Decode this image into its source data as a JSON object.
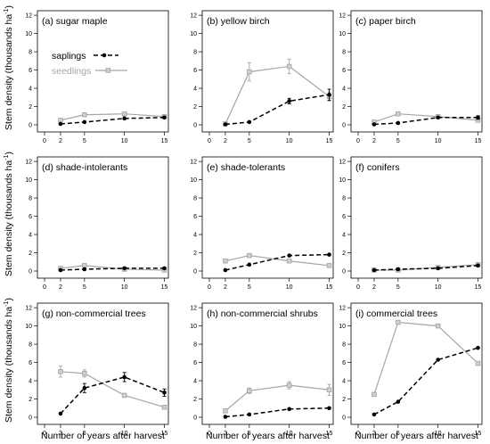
{
  "figure": {
    "ylabel": "Stem density (thousands ha",
    "ylabel_sup": "-1",
    "xlabel": "Number of years after harvest"
  },
  "legend": {
    "saplings": "saplings",
    "seedlings": "seedlings"
  },
  "colors": {
    "saplings": "#000000",
    "seedlings": "#a6a6a6"
  },
  "chart_data": [
    {
      "type": "line",
      "title": "(a) sugar maple",
      "x": [
        2,
        5,
        10,
        15
      ],
      "xticks": [
        0,
        2,
        5,
        10,
        15
      ],
      "xlim": [
        0,
        15.5
      ],
      "yticks": [
        0,
        2,
        4,
        6,
        8,
        10,
        12
      ],
      "ylim": [
        0,
        12.5
      ],
      "series": [
        {
          "name": "saplings",
          "values": [
            0.1,
            0.3,
            0.7,
            0.8
          ],
          "err": [
            0,
            0,
            0,
            0.1
          ]
        },
        {
          "name": "seedlings",
          "values": [
            0.5,
            1.1,
            1.2,
            0.9
          ],
          "err": [
            0,
            0,
            0.1,
            0
          ]
        }
      ]
    },
    {
      "type": "line",
      "title": "(b) yellow birch",
      "x": [
        2,
        5,
        10,
        15
      ],
      "xticks": [
        0,
        2,
        5,
        10,
        15
      ],
      "xlim": [
        0,
        15.5
      ],
      "yticks": [
        0,
        2,
        4,
        6,
        8,
        10,
        12
      ],
      "ylim": [
        0,
        12.5
      ],
      "series": [
        {
          "name": "saplings",
          "values": [
            0.05,
            0.3,
            2.6,
            3.3
          ],
          "err": [
            0,
            0,
            0.3,
            0.6
          ]
        },
        {
          "name": "seedlings",
          "values": [
            0.1,
            5.8,
            6.4,
            3.1
          ],
          "err": [
            0.2,
            1.0,
            0.8,
            0.5
          ]
        }
      ]
    },
    {
      "type": "line",
      "title": "(c) paper birch",
      "x": [
        2,
        5,
        10,
        15
      ],
      "xticks": [
        0,
        2,
        5,
        10,
        15
      ],
      "xlim": [
        0,
        15.5
      ],
      "yticks": [
        0,
        2,
        4,
        6,
        8,
        10,
        12
      ],
      "ylim": [
        0,
        12.5
      ],
      "series": [
        {
          "name": "saplings",
          "values": [
            0.05,
            0.2,
            0.8,
            0.8
          ],
          "err": [
            0,
            0,
            0,
            0.2
          ]
        },
        {
          "name": "seedlings",
          "values": [
            0.3,
            1.2,
            0.9,
            0.5
          ],
          "err": [
            0,
            0,
            0.1,
            0
          ]
        }
      ]
    },
    {
      "type": "line",
      "title": "(d) shade-intolerants",
      "x": [
        2,
        5,
        10,
        15
      ],
      "xticks": [
        0,
        2,
        5,
        10,
        15
      ],
      "xlim": [
        0,
        15.5
      ],
      "yticks": [
        0,
        2,
        4,
        6,
        8,
        10,
        12
      ],
      "ylim": [
        0,
        12.5
      ],
      "series": [
        {
          "name": "saplings",
          "values": [
            0.1,
            0.2,
            0.3,
            0.3
          ],
          "err": [
            0,
            0,
            0,
            0
          ]
        },
        {
          "name": "seedlings",
          "values": [
            0.3,
            0.6,
            0.2,
            0.1
          ],
          "err": [
            0.1,
            0.2,
            0,
            0
          ]
        }
      ]
    },
    {
      "type": "line",
      "title": "(e) shade-tolerants",
      "x": [
        2,
        5,
        10,
        15
      ],
      "xticks": [
        0,
        2,
        5,
        10,
        15
      ],
      "xlim": [
        0,
        15.5
      ],
      "yticks": [
        0,
        2,
        4,
        6,
        8,
        10,
        12
      ],
      "ylim": [
        0,
        12.5
      ],
      "series": [
        {
          "name": "saplings",
          "values": [
            0.1,
            0.7,
            1.7,
            1.8
          ],
          "err": [
            0,
            0,
            0,
            0
          ]
        },
        {
          "name": "seedlings",
          "values": [
            1.1,
            1.7,
            1.1,
            0.6
          ],
          "err": [
            0,
            0,
            0,
            0
          ]
        }
      ]
    },
    {
      "type": "line",
      "title": "(f) conifers",
      "x": [
        2,
        5,
        10,
        15
      ],
      "xticks": [
        0,
        2,
        5,
        10,
        15
      ],
      "xlim": [
        0,
        15.5
      ],
      "yticks": [
        0,
        2,
        4,
        6,
        8,
        10,
        12
      ],
      "ylim": [
        0,
        12.5
      ],
      "series": [
        {
          "name": "saplings",
          "values": [
            0.1,
            0.2,
            0.3,
            0.6
          ],
          "err": [
            0,
            0,
            0,
            0
          ]
        },
        {
          "name": "seedlings",
          "values": [
            0.1,
            0.1,
            0.4,
            0.7
          ],
          "err": [
            0,
            0,
            0,
            0
          ]
        }
      ]
    },
    {
      "type": "line",
      "title": "(g) non-commercial trees",
      "x": [
        2,
        5,
        10,
        15
      ],
      "xticks": [
        0,
        2,
        5,
        10,
        15
      ],
      "xlim": [
        0,
        15.5
      ],
      "yticks": [
        0,
        2,
        4,
        6,
        8,
        10,
        12
      ],
      "ylim": [
        0,
        12.5
      ],
      "series": [
        {
          "name": "saplings",
          "values": [
            0.4,
            3.2,
            4.4,
            2.7
          ],
          "err": [
            0,
            0.5,
            0.5,
            0.4
          ]
        },
        {
          "name": "seedlings",
          "values": [
            5.0,
            4.8,
            2.4,
            1.1
          ],
          "err": [
            0.6,
            0.4,
            0,
            0
          ]
        }
      ]
    },
    {
      "type": "line",
      "title": "(h) non-commercial shrubs",
      "x": [
        2,
        5,
        10,
        15
      ],
      "xticks": [
        0,
        2,
        5,
        10,
        15
      ],
      "xlim": [
        0,
        15.5
      ],
      "yticks": [
        0,
        2,
        4,
        6,
        8,
        10,
        12
      ],
      "ylim": [
        0,
        12.5
      ],
      "series": [
        {
          "name": "saplings",
          "values": [
            0.05,
            0.3,
            0.9,
            1.0
          ],
          "err": [
            0,
            0,
            0,
            0
          ]
        },
        {
          "name": "seedlings",
          "values": [
            0.7,
            2.9,
            3.5,
            3.0
          ],
          "err": [
            0,
            0.3,
            0.4,
            0.6
          ]
        }
      ]
    },
    {
      "type": "line",
      "title": "(i) commercial trees",
      "x": [
        2,
        5,
        10,
        15
      ],
      "xticks": [
        0,
        2,
        5,
        10,
        15
      ],
      "xlim": [
        0,
        15.5
      ],
      "yticks": [
        0,
        2,
        4,
        6,
        8,
        10,
        12
      ],
      "ylim": [
        0,
        12.5
      ],
      "series": [
        {
          "name": "saplings",
          "values": [
            0.3,
            1.7,
            6.3,
            7.6
          ],
          "err": [
            0,
            0,
            0,
            0
          ]
        },
        {
          "name": "seedlings",
          "values": [
            2.5,
            10.4,
            10.0,
            5.9
          ],
          "err": [
            0,
            0,
            0.2,
            0
          ]
        }
      ]
    }
  ]
}
